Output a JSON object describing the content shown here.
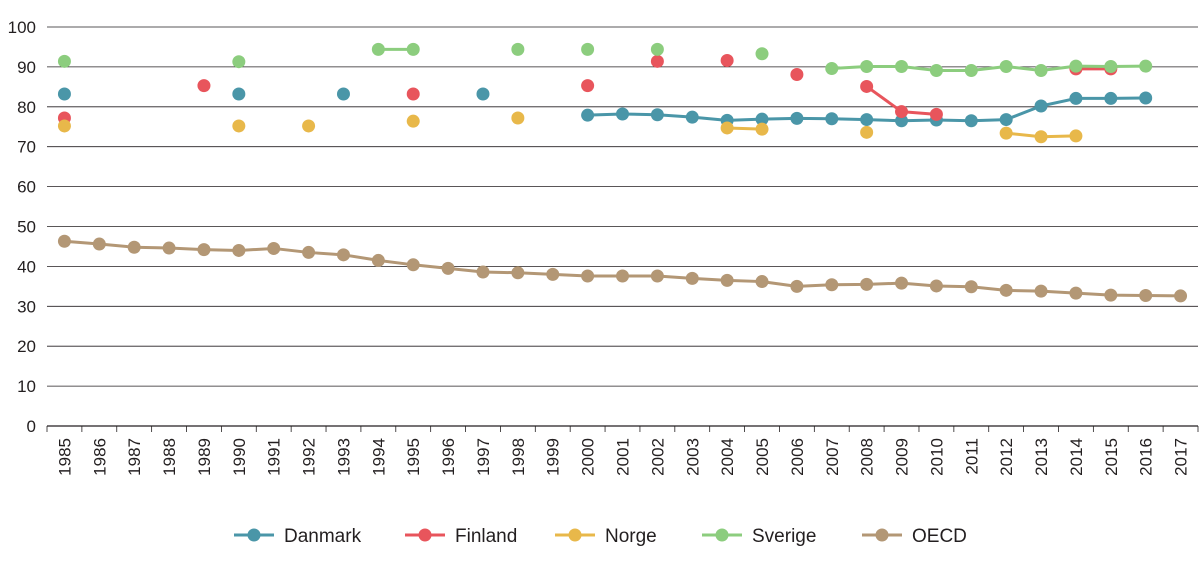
{
  "chart_data": {
    "type": "line",
    "title": "",
    "xlabel": "",
    "ylabel": "",
    "ylim": [
      0,
      100
    ],
    "yticks": [
      0,
      10,
      20,
      30,
      40,
      50,
      60,
      70,
      80,
      90,
      100
    ],
    "grid": "horizontal",
    "legend_position": "bottom",
    "categories": [
      "1985",
      "1986",
      "1987",
      "1988",
      "1989",
      "1990",
      "1991",
      "1992",
      "1993",
      "1994",
      "1995",
      "1996",
      "1997",
      "1998",
      "1999",
      "2000",
      "2001",
      "2002",
      "2003",
      "2004",
      "2005",
      "2006",
      "2007",
      "2008",
      "2009",
      "2010",
      "2011",
      "2012",
      "2013",
      "2014",
      "2015",
      "2016",
      "2017"
    ],
    "series": [
      {
        "name": "Danmark",
        "color": "#4a96a8",
        "values": [
          83.2,
          null,
          null,
          null,
          null,
          83.2,
          null,
          null,
          83.2,
          null,
          null,
          null,
          83.2,
          null,
          null,
          77.9,
          78.2,
          78.0,
          77.4,
          76.6,
          76.9,
          77.1,
          77.0,
          76.8,
          76.5,
          76.7,
          76.5,
          76.8,
          80.2,
          82.1,
          82.1,
          82.2,
          null
        ]
      },
      {
        "name": "Finland",
        "color": "#e8555c",
        "values": [
          77.2,
          null,
          null,
          null,
          85.3,
          null,
          null,
          null,
          null,
          null,
          83.2,
          null,
          null,
          null,
          null,
          85.3,
          null,
          91.4,
          null,
          91.6,
          null,
          88.1,
          null,
          85.1,
          78.8,
          78.1,
          null,
          null,
          null,
          89.5,
          89.5,
          null,
          null
        ]
      },
      {
        "name": "Norge",
        "color": "#e8b84a",
        "values": [
          75.2,
          null,
          null,
          null,
          null,
          75.2,
          null,
          75.2,
          null,
          null,
          76.4,
          null,
          null,
          77.2,
          null,
          null,
          null,
          null,
          null,
          74.7,
          74.4,
          null,
          null,
          73.6,
          null,
          null,
          null,
          73.4,
          72.5,
          72.7,
          null,
          null,
          null
        ]
      },
      {
        "name": "Sverige",
        "color": "#8ccd7e",
        "values": [
          91.4,
          null,
          null,
          null,
          null,
          91.3,
          null,
          null,
          null,
          94.4,
          94.4,
          null,
          null,
          94.4,
          null,
          94.4,
          null,
          94.4,
          null,
          null,
          93.3,
          null,
          89.6,
          90.1,
          90.1,
          89.1,
          89.1,
          90.1,
          89.1,
          90.2,
          90.1,
          90.2,
          null
        ]
      },
      {
        "name": "OECD",
        "color": "#b39775",
        "values": [
          46.3,
          45.6,
          44.8,
          44.6,
          44.2,
          44.0,
          44.5,
          43.5,
          42.9,
          41.5,
          40.4,
          39.5,
          38.6,
          38.4,
          38.0,
          37.6,
          37.6,
          37.6,
          37.0,
          36.5,
          36.2,
          35.0,
          35.4,
          35.5,
          35.8,
          35.1,
          34.9,
          34.0,
          33.8,
          33.3,
          32.8,
          32.7,
          32.6
        ]
      }
    ]
  }
}
